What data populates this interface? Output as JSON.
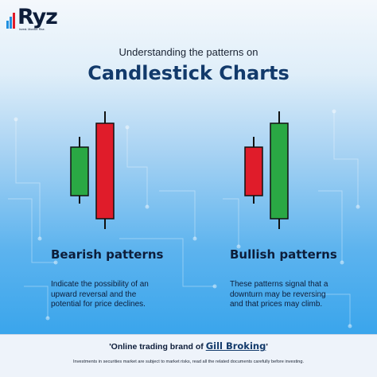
{
  "logo": {
    "text": "Ryz",
    "tagline": "Invest. Monitor. Rise."
  },
  "header": {
    "subtitle": "Understanding the patterns on",
    "title": "Candlestick Charts"
  },
  "colors": {
    "bullish": "#2aa844",
    "bearish": "#e01c2a",
    "title": "#123a6b",
    "text": "#0d1d3a"
  },
  "patterns": [
    {
      "title": "Bearish patterns",
      "description": "Indicate the possibility of an upward reversal and the potential for price declines.",
      "candles": [
        {
          "color": "bullish",
          "size": "small"
        },
        {
          "color": "bearish",
          "size": "large"
        }
      ]
    },
    {
      "title": "Bullish patterns",
      "description": "These patterns signal that a downturn may be reversing and that prices may climb.",
      "candles": [
        {
          "color": "bearish",
          "size": "small"
        },
        {
          "color": "bullish",
          "size": "large"
        }
      ]
    }
  ],
  "footer": {
    "brand_prefix": "'Online trading brand of ",
    "brand_name": "Gill Broking",
    "brand_suffix": "'",
    "disclaimer": "Investments in securities market are subject to market risks, read all the related documents carefully before investing."
  }
}
